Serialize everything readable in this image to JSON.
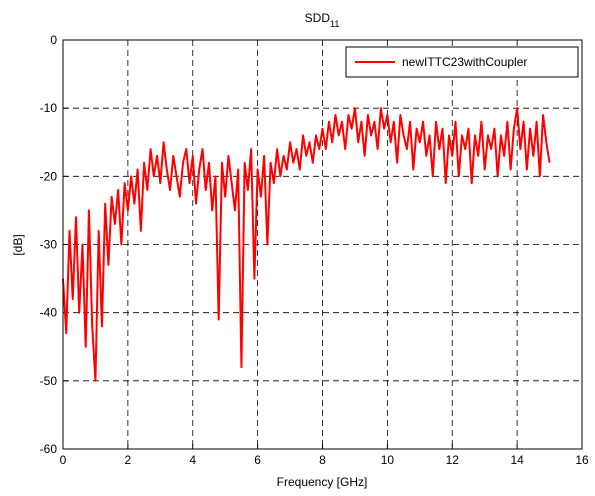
{
  "chart_data": {
    "type": "line",
    "title": {
      "text": "SDD",
      "subscript": "11"
    },
    "x_label": "Frequency [GHz]",
    "y_label": "[dB]",
    "xlim": [
      0,
      16
    ],
    "xticks": [
      0,
      2,
      4,
      6,
      8,
      10,
      12,
      14,
      16
    ],
    "ylim": [
      -60,
      0
    ],
    "yticks": [
      -60,
      -50,
      -40,
      -30,
      -20,
      -10,
      0
    ],
    "grid": true,
    "legend": "northeast",
    "x": [
      0.0,
      0.1,
      0.2,
      0.3,
      0.4,
      0.5,
      0.6,
      0.7,
      0.8,
      0.9,
      1.0,
      1.1,
      1.2,
      1.3,
      1.4,
      1.5,
      1.6,
      1.7,
      1.8,
      1.9,
      2.0,
      2.1,
      2.2,
      2.3,
      2.4,
      2.5,
      2.6,
      2.7,
      2.8,
      2.9,
      3.0,
      3.1,
      3.2,
      3.3,
      3.4,
      3.5,
      3.6,
      3.7,
      3.8,
      3.9,
      4.0,
      4.1,
      4.2,
      4.3,
      4.4,
      4.5,
      4.6,
      4.7,
      4.8,
      4.9,
      5.0,
      5.1,
      5.2,
      5.3,
      5.4,
      5.5,
      5.6,
      5.7,
      5.8,
      5.9,
      6.0,
      6.1,
      6.2,
      6.3,
      6.4,
      6.5,
      6.6,
      6.7,
      6.8,
      6.9,
      7.0,
      7.1,
      7.2,
      7.3,
      7.4,
      7.5,
      7.6,
      7.7,
      7.8,
      7.9,
      8.0,
      8.1,
      8.2,
      8.3,
      8.4,
      8.5,
      8.6,
      8.7,
      8.8,
      8.9,
      9.0,
      9.1,
      9.2,
      9.3,
      9.4,
      9.5,
      9.6,
      9.7,
      9.8,
      9.9,
      10.0,
      10.1,
      10.2,
      10.3,
      10.4,
      10.5,
      10.6,
      10.7,
      10.8,
      10.9,
      11.0,
      11.1,
      11.2,
      11.3,
      11.4,
      11.5,
      11.6,
      11.7,
      11.8,
      11.9,
      12.0,
      12.1,
      12.2,
      12.3,
      12.4,
      12.5,
      12.6,
      12.7,
      12.8,
      12.9,
      13.0,
      13.1,
      13.2,
      13.3,
      13.4,
      13.5,
      13.6,
      13.7,
      13.8,
      13.9,
      14.0,
      14.1,
      14.2,
      14.3,
      14.4,
      14.5,
      14.6,
      14.7,
      14.8,
      14.9,
      15.0
    ],
    "series": [
      {
        "name": "newITTC23withCoupler",
        "color": "#ff0000",
        "values": [
          -35,
          -43,
          -28,
          -38,
          -26,
          -40,
          -30,
          -45,
          -25,
          -42,
          -50,
          -28,
          -42,
          -24,
          -33,
          -23,
          -27,
          -22,
          -30,
          -21,
          -25,
          -20,
          -24,
          -19,
          -28,
          -18,
          -22,
          -16,
          -20,
          -17,
          -21,
          -15,
          -19,
          -22,
          -17,
          -20,
          -23,
          -18,
          -16,
          -21,
          -17,
          -24,
          -19,
          -16,
          -22,
          -18,
          -25,
          -20,
          -41,
          -18,
          -23,
          -17,
          -21,
          -25,
          -19,
          -48,
          -18,
          -22,
          -16,
          -35,
          -19,
          -23,
          -17,
          -30,
          -18,
          -21,
          -16,
          -20,
          -17,
          -19,
          -15,
          -18,
          -16,
          -19,
          -14,
          -17,
          -15,
          -18,
          -14,
          -16,
          -13,
          -16,
          -12,
          -15,
          -11,
          -14,
          -12,
          -16,
          -11,
          -13,
          -10,
          -15,
          -12,
          -17,
          -11,
          -14,
          -12,
          -16,
          -10,
          -13,
          -11,
          -15,
          -12,
          -18,
          -11,
          -14,
          -16,
          -12,
          -19,
          -13,
          -15,
          -12,
          -17,
          -14,
          -20,
          -12,
          -16,
          -13,
          -21,
          -14,
          -17,
          -12,
          -20,
          -14,
          -16,
          -13,
          -21,
          -14,
          -17,
          -12,
          -19,
          -14,
          -16,
          -13,
          -20,
          -14,
          -17,
          -12,
          -19,
          -13,
          -10,
          -16,
          -12,
          -19,
          -13,
          -17,
          -12,
          -20,
          -11,
          -15,
          -18
        ]
      }
    ]
  }
}
